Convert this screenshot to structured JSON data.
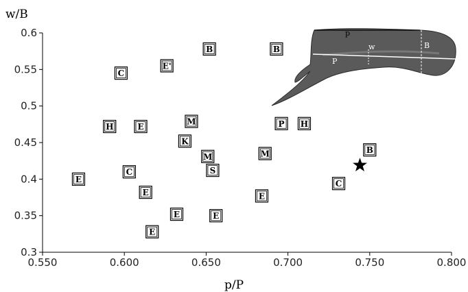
{
  "chart_data": {
    "type": "scatter",
    "xlabel": "p/P",
    "ylabel": "w/B",
    "xlim": [
      0.55,
      0.8
    ],
    "ylim": [
      0.3,
      0.6
    ],
    "xticks": [
      "0.550",
      "0.600",
      "0.650",
      "0.700",
      "0.750",
      "0.800"
    ],
    "yticks": [
      "0.3",
      "0.35",
      "0.4",
      "0.45",
      "0.5",
      "0.55",
      "0.6"
    ],
    "grid": false,
    "points": [
      {
        "label": "B",
        "x": 0.652,
        "y": 0.578
      },
      {
        "label": "B",
        "x": 0.693,
        "y": 0.578
      },
      {
        "label": "C",
        "x": 0.598,
        "y": 0.545
      },
      {
        "label": "E'",
        "x": 0.626,
        "y": 0.555
      },
      {
        "label": "H",
        "x": 0.591,
        "y": 0.472
      },
      {
        "label": "E",
        "x": 0.61,
        "y": 0.472
      },
      {
        "label": "M",
        "x": 0.641,
        "y": 0.479
      },
      {
        "label": "P",
        "x": 0.696,
        "y": 0.476
      },
      {
        "label": "H",
        "x": 0.71,
        "y": 0.476
      },
      {
        "label": "K",
        "x": 0.637,
        "y": 0.452
      },
      {
        "label": "M",
        "x": 0.651,
        "y": 0.431
      },
      {
        "label": "S",
        "x": 0.654,
        "y": 0.412
      },
      {
        "label": "M",
        "x": 0.686,
        "y": 0.435
      },
      {
        "label": "B",
        "x": 0.75,
        "y": 0.44
      },
      {
        "label": "E",
        "x": 0.572,
        "y": 0.4
      },
      {
        "label": "C",
        "x": 0.603,
        "y": 0.41
      },
      {
        "label": "E",
        "x": 0.613,
        "y": 0.382
      },
      {
        "label": "E",
        "x": 0.684,
        "y": 0.377
      },
      {
        "label": "C",
        "x": 0.731,
        "y": 0.394
      },
      {
        "label": "E",
        "x": 0.632,
        "y": 0.352
      },
      {
        "label": "E",
        "x": 0.656,
        "y": 0.35
      },
      {
        "label": "E",
        "x": 0.617,
        "y": 0.328
      }
    ],
    "highlight": {
      "marker": "star",
      "x": 0.744,
      "y": 0.419
    },
    "inset_labels": [
      "p",
      "w",
      "B",
      "P"
    ]
  }
}
